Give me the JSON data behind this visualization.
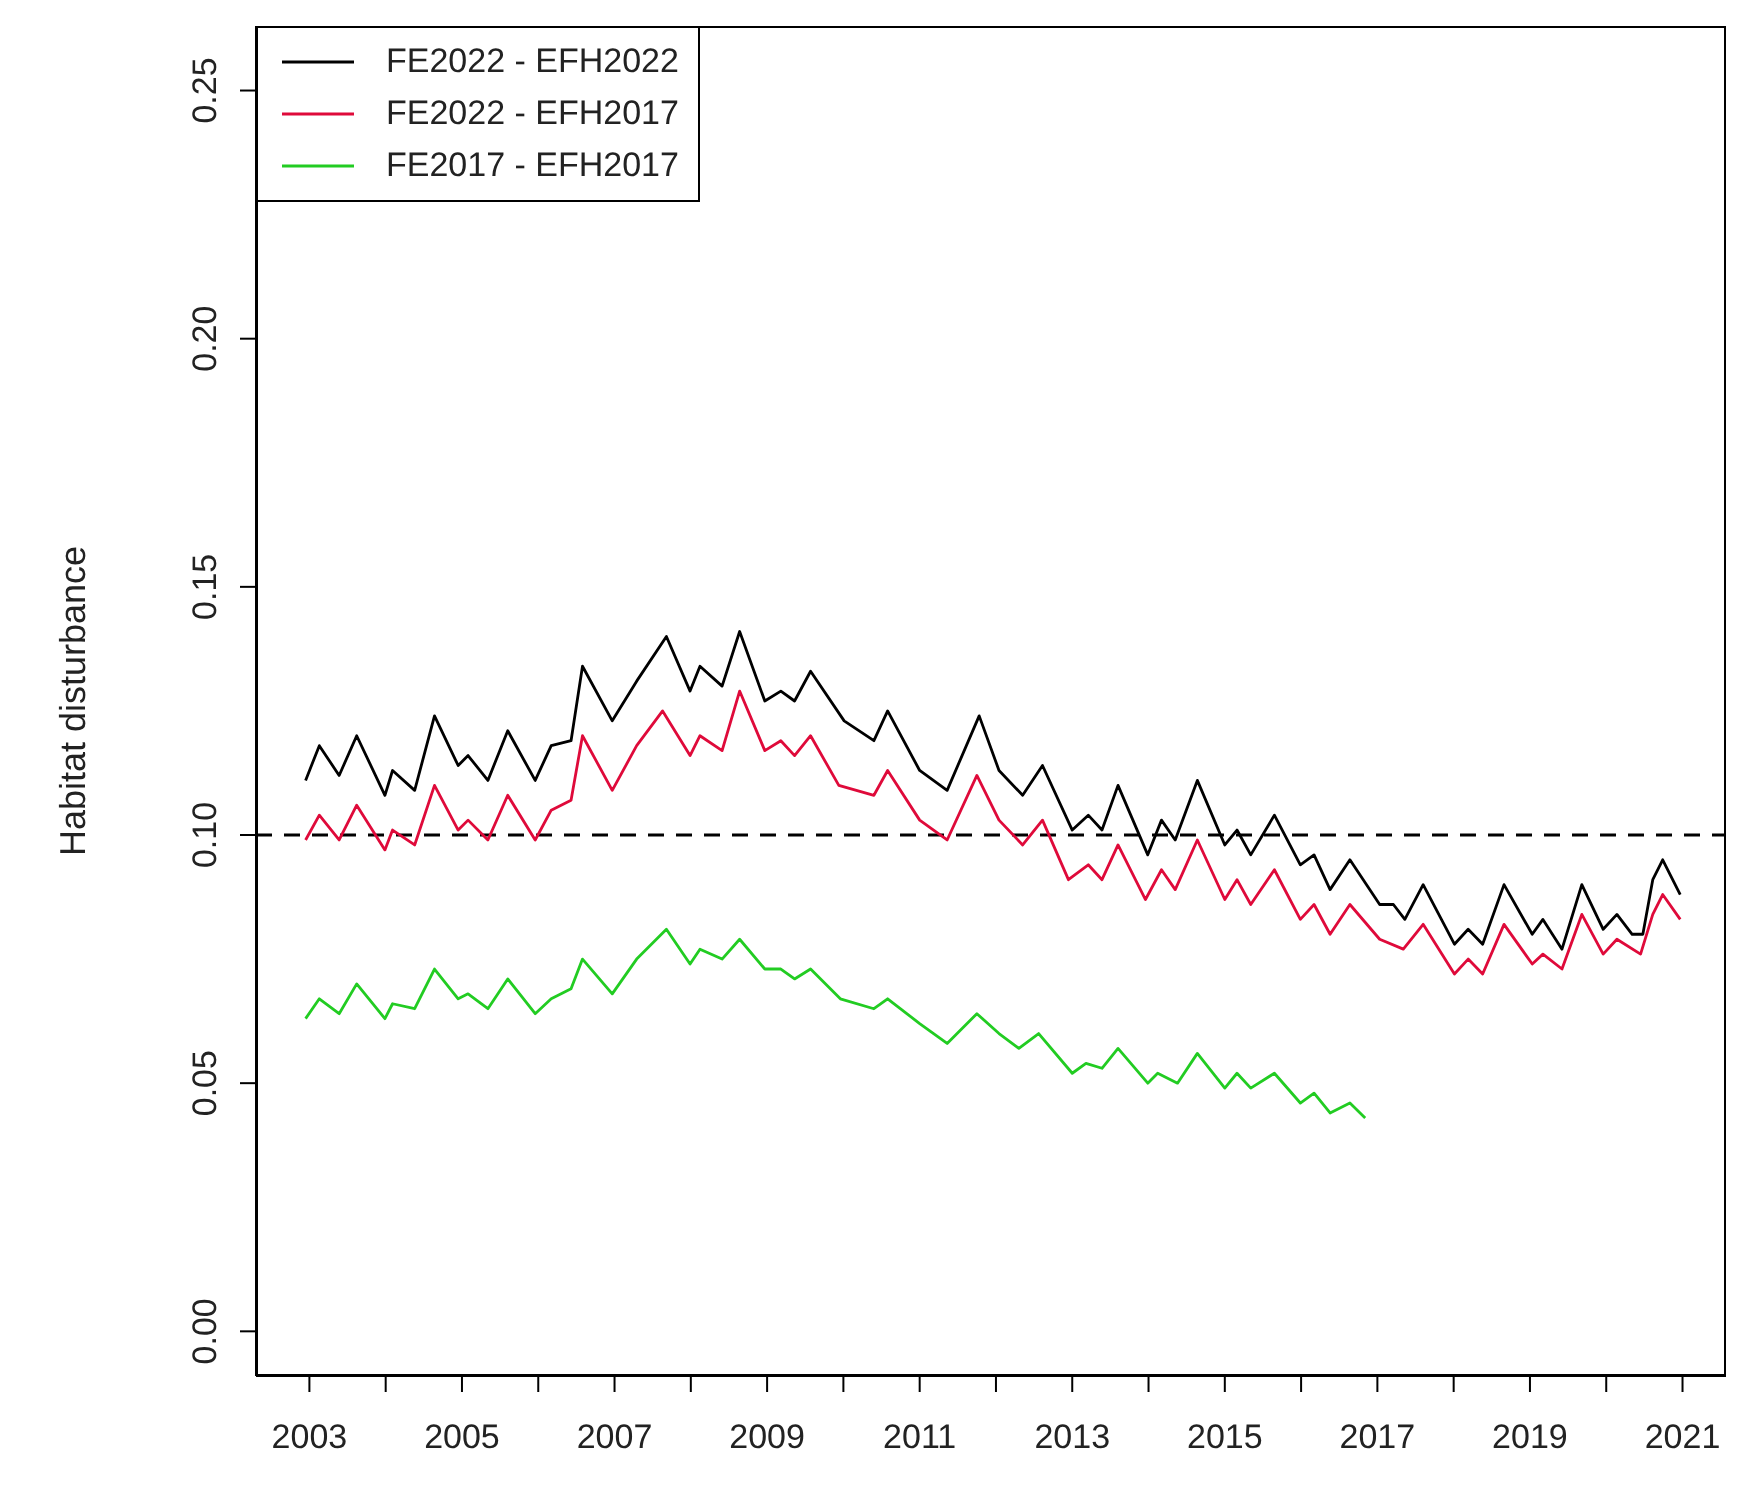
{
  "chart_data": {
    "type": "line",
    "ylabel": "Habitat disturbance",
    "xlim": [
      2002.3,
      2021.57
    ],
    "ylim": [
      -0.009,
      0.263
    ],
    "xticks": [
      2003,
      {
        "value": 2004,
        "label": null
      },
      2005,
      {
        "value": 2006,
        "label": null
      },
      2007,
      {
        "value": 2008,
        "label": null
      },
      2009,
      {
        "value": 2010,
        "label": null
      },
      2011,
      {
        "value": 2012,
        "label": null
      },
      2013,
      {
        "value": 2014,
        "label": null
      },
      2015,
      {
        "value": 2016,
        "label": null
      },
      2017,
      {
        "value": 2018,
        "label": null
      },
      2019,
      {
        "value": 2020,
        "label": null
      },
      2021
    ],
    "yticks": [
      {
        "value": 0,
        "label": "0.00"
      },
      {
        "value": 0.05,
        "label": "0.05"
      },
      {
        "value": 0.1,
        "label": "0.10"
      },
      {
        "value": 0.15,
        "label": "0.15"
      },
      {
        "value": 0.2,
        "label": "0.20"
      },
      {
        "value": 0.25,
        "label": "0.25"
      }
    ],
    "grid": false,
    "legend": "top left",
    "marker": "none",
    "line_style": "solid",
    "ref_lines": [
      {
        "axis": "y",
        "value": 0.1,
        "color": "#000000",
        "line_style": "dashed"
      }
    ],
    "series": [
      {
        "name": "FE2022 - EFH2022",
        "color": "#000000",
        "x": [
          2002.95,
          2003.13,
          2003.39,
          2003.62,
          2003.99,
          2004.09,
          2004.38,
          2004.64,
          2004.95,
          2005.08,
          2005.34,
          2005.6,
          2005.96,
          2006.17,
          2006.43,
          2006.58,
          2006.97,
          2007.29,
          2007.68,
          2007.99,
          2008.12,
          2008.41,
          2008.64,
          2008.97,
          2009.18,
          2009.36,
          2009.57,
          2010.01,
          2010.4,
          2010.58,
          2011,
          2011.36,
          2011.78,
          2012.04,
          2012.35,
          2012.61,
          2013,
          2013.21,
          2013.39,
          2013.6,
          2013.99,
          2014.17,
          2014.35,
          2014.64,
          2015,
          2015.16,
          2015.34,
          2015.65,
          2015.99,
          2016.17,
          2016.38,
          2016.64,
          2017.03,
          2017.21,
          2017.36,
          2017.6,
          2018.01,
          2018.19,
          2018.38,
          2018.66,
          2019.03,
          2019.17,
          2019.42,
          2019.68,
          2019.96,
          2020.14,
          2020.34,
          2020.48,
          2020.61,
          2020.74,
          2020.97
        ],
        "values": [
          0.111,
          0.118,
          0.112,
          0.12,
          0.108,
          0.113,
          0.109,
          0.124,
          0.114,
          0.116,
          0.111,
          0.121,
          0.111,
          0.118,
          0.119,
          0.134,
          0.123,
          0.131,
          0.14,
          0.129,
          0.134,
          0.13,
          0.141,
          0.127,
          0.129,
          0.127,
          0.133,
          0.123,
          0.119,
          0.125,
          0.113,
          0.109,
          0.124,
          0.113,
          0.108,
          0.114,
          0.101,
          0.104,
          0.101,
          0.11,
          0.096,
          0.103,
          0.099,
          0.111,
          0.098,
          0.101,
          0.096,
          0.104,
          0.094,
          0.096,
          0.089,
          0.095,
          0.086,
          0.086,
          0.083,
          0.09,
          0.078,
          0.081,
          0.078,
          0.09,
          0.08,
          0.083,
          0.077,
          0.09,
          0.081,
          0.084,
          0.08,
          0.08,
          0.091,
          0.095,
          0.088
        ]
      },
      {
        "name": "FE2022 - EFH2017",
        "color": "#df0a3a",
        "x": [
          2002.95,
          2003.13,
          2003.39,
          2003.62,
          2003.99,
          2004.09,
          2004.38,
          2004.64,
          2004.95,
          2005.08,
          2005.34,
          2005.6,
          2005.96,
          2006.17,
          2006.43,
          2006.58,
          2006.97,
          2007.29,
          2007.63,
          2007.99,
          2008.12,
          2008.41,
          2008.64,
          2008.97,
          2009.18,
          2009.36,
          2009.57,
          2009.94,
          2010.4,
          2010.58,
          2011,
          2011.36,
          2011.75,
          2012.04,
          2012.35,
          2012.61,
          2012.95,
          2013.21,
          2013.39,
          2013.6,
          2013.96,
          2014.17,
          2014.35,
          2014.64,
          2015,
          2015.16,
          2015.34,
          2015.65,
          2015.99,
          2016.17,
          2016.38,
          2016.64,
          2017.03,
          2017.34,
          2017.6,
          2018.01,
          2018.19,
          2018.38,
          2018.66,
          2019.03,
          2019.17,
          2019.42,
          2019.68,
          2019.96,
          2020.14,
          2020.45,
          2020.61,
          2020.74,
          2020.97
        ],
        "values": [
          0.099,
          0.104,
          0.099,
          0.106,
          0.097,
          0.101,
          0.098,
          0.11,
          0.101,
          0.103,
          0.099,
          0.108,
          0.099,
          0.105,
          0.107,
          0.12,
          0.109,
          0.118,
          0.125,
          0.116,
          0.12,
          0.117,
          0.129,
          0.117,
          0.119,
          0.116,
          0.12,
          0.11,
          0.108,
          0.113,
          0.103,
          0.099,
          0.112,
          0.103,
          0.098,
          0.103,
          0.091,
          0.094,
          0.091,
          0.098,
          0.087,
          0.093,
          0.089,
          0.099,
          0.087,
          0.091,
          0.086,
          0.093,
          0.083,
          0.086,
          0.08,
          0.086,
          0.079,
          0.077,
          0.082,
          0.072,
          0.075,
          0.072,
          0.082,
          0.074,
          0.076,
          0.073,
          0.084,
          0.076,
          0.079,
          0.076,
          0.084,
          0.088,
          0.083
        ]
      },
      {
        "name": "FE2017 - EFH2017",
        "color": "#22cc22",
        "x": [
          2002.95,
          2003.13,
          2003.39,
          2003.62,
          2003.99,
          2004.09,
          2004.38,
          2004.64,
          2004.95,
          2005.08,
          2005.34,
          2005.6,
          2005.96,
          2006.17,
          2006.43,
          2006.58,
          2006.97,
          2007.29,
          2007.68,
          2007.99,
          2008.12,
          2008.41,
          2008.64,
          2008.97,
          2009.18,
          2009.36,
          2009.57,
          2009.96,
          2010.4,
          2010.58,
          2011,
          2011.36,
          2011.75,
          2012.04,
          2012.3,
          2012.56,
          2013,
          2013.18,
          2013.39,
          2013.6,
          2013.99,
          2014.12,
          2014.38,
          2014.64,
          2015,
          2015.16,
          2015.34,
          2015.65,
          2015.99,
          2016.17,
          2016.38,
          2016.64,
          2016.84
        ],
        "values": [
          0.063,
          0.067,
          0.064,
          0.07,
          0.063,
          0.066,
          0.065,
          0.073,
          0.067,
          0.068,
          0.065,
          0.071,
          0.064,
          0.067,
          0.069,
          0.075,
          0.068,
          0.075,
          0.081,
          0.074,
          0.077,
          0.075,
          0.079,
          0.073,
          0.073,
          0.071,
          0.073,
          0.067,
          0.065,
          0.067,
          0.062,
          0.058,
          0.064,
          0.06,
          0.057,
          0.06,
          0.052,
          0.054,
          0.053,
          0.057,
          0.05,
          0.052,
          0.05,
          0.056,
          0.049,
          0.052,
          0.049,
          0.052,
          0.046,
          0.048,
          0.044,
          0.046,
          0.043
        ]
      }
    ]
  }
}
